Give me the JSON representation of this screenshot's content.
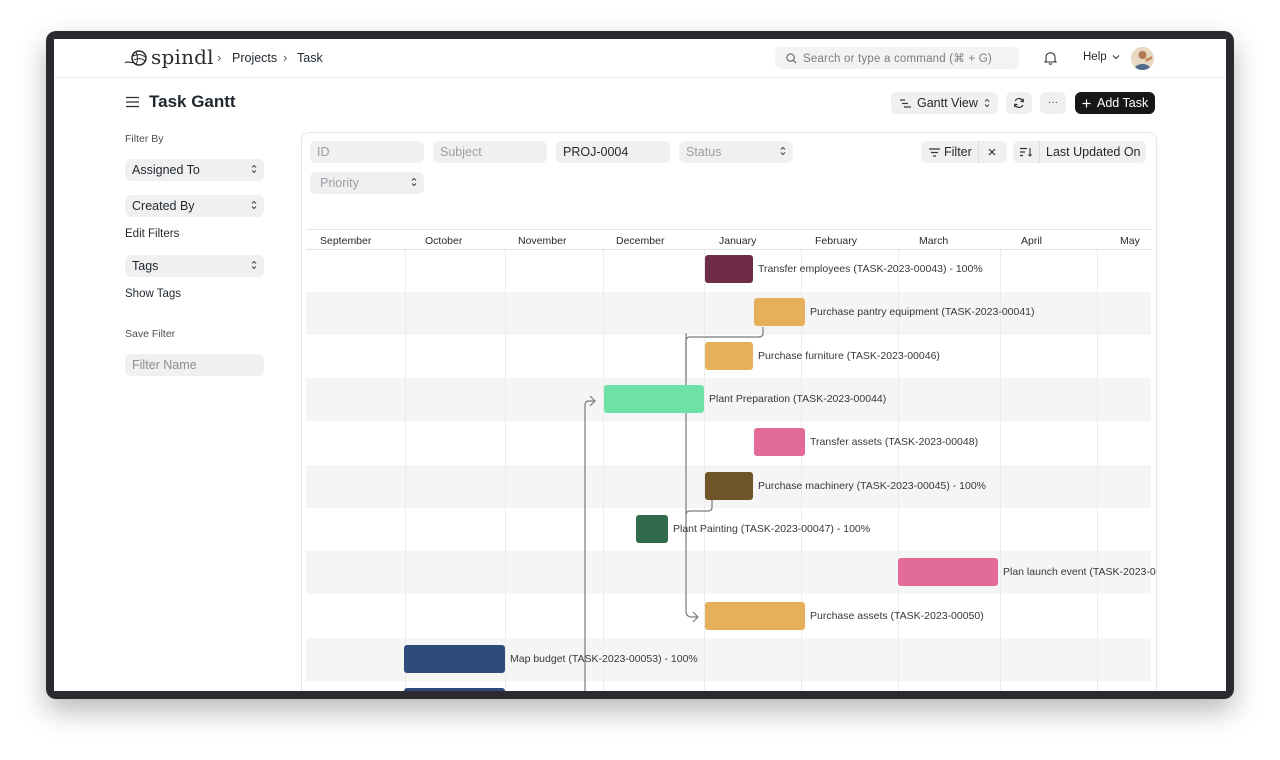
{
  "app": {
    "brand": "spindl"
  },
  "breadcrumb": [
    "Projects",
    "Task"
  ],
  "search": {
    "placeholder": "Search or type a command (⌘ + G)"
  },
  "help_label": "Help",
  "page": {
    "title": "Task Gantt"
  },
  "toolbar": {
    "view_label": "Gantt View",
    "more_label": "···",
    "add_label": "Add Task"
  },
  "sidebar": {
    "filter_by": "Filter By",
    "assigned_to": "Assigned To",
    "created_by": "Created By",
    "edit_filters": "Edit Filters",
    "tags": "Tags",
    "show_tags": "Show Tags",
    "save_filter": "Save Filter",
    "filter_name_placeholder": "Filter Name"
  },
  "filters": {
    "id_placeholder": "ID",
    "subject_placeholder": "Subject",
    "project_value": "PROJ-0004",
    "status_placeholder": "Status",
    "priority_placeholder": "Priority",
    "filter_label": "Filter",
    "sort_label": "Last Updated On"
  },
  "gantt": {
    "months": [
      "September",
      "October",
      "November",
      "December",
      "January",
      "February",
      "March",
      "April",
      "May"
    ],
    "tasks": [
      {
        "label": "Transfer employees (TASK-2023-00043) - 100%",
        "color": "#6e2c49"
      },
      {
        "label": "Purchase pantry equipment (TASK-2023-00041)",
        "color": "#e6b05a"
      },
      {
        "label": "Purchase furniture (TASK-2023-00046)",
        "color": "#e6b05a"
      },
      {
        "label": "Plant Preparation (TASK-2023-00044)",
        "color": "#6ee2a6"
      },
      {
        "label": "Transfer assets (TASK-2023-00048)",
        "color": "#e26b9a"
      },
      {
        "label": "Purchase machinery (TASK-2023-00045) - 100%",
        "color": "#6f5428"
      },
      {
        "label": "Plant Painting (TASK-2023-00047) - 100%",
        "color": "#2f6b4a"
      },
      {
        "label": "Plan launch event (TASK-2023-0",
        "color": "#e26b9a"
      },
      {
        "label": "Purchase assets (TASK-2023-00050)",
        "color": "#e6b05a"
      },
      {
        "label": "Map budget (TASK-2023-00053) - 100%",
        "color": "#2d4c7a"
      },
      {
        "label": "",
        "color": "#2d4c7a"
      }
    ]
  }
}
